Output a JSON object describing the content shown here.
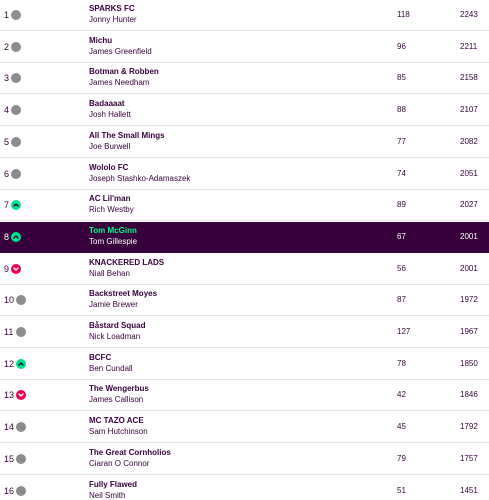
{
  "standings": [
    {
      "rank": "1",
      "movement": "same",
      "team": "SPARKS FC",
      "manager": "Jonny Hunter",
      "gw": "118",
      "total": "2243"
    },
    {
      "rank": "2",
      "movement": "same",
      "team": "Michu",
      "manager": "James Greenfield",
      "gw": "96",
      "total": "2211"
    },
    {
      "rank": "3",
      "movement": "same",
      "team": "Botman & Robben",
      "manager": "James Needham",
      "gw": "85",
      "total": "2158"
    },
    {
      "rank": "4",
      "movement": "same",
      "team": "Badaaaat",
      "manager": "Josh Hallett",
      "gw": "88",
      "total": "2107"
    },
    {
      "rank": "5",
      "movement": "same",
      "team": "All The Small Mings",
      "manager": "Joe Burwell",
      "gw": "77",
      "total": "2082"
    },
    {
      "rank": "6",
      "movement": "same",
      "team": "Wololo FC",
      "manager": "Joseph Stashko-Adamaszek",
      "gw": "74",
      "total": "2051"
    },
    {
      "rank": "7",
      "movement": "up",
      "team": "AC Lil'man",
      "manager": "Rich Westby",
      "gw": "89",
      "total": "2027"
    },
    {
      "rank": "8",
      "movement": "up",
      "team": "Tom McGinn",
      "manager": "Tom Gillespie",
      "gw": "67",
      "total": "2001",
      "highlight": true
    },
    {
      "rank": "9",
      "movement": "down",
      "team": "KNACKERED LADS",
      "manager": "Niall Behan",
      "gw": "56",
      "total": "2001"
    },
    {
      "rank": "10",
      "movement": "same",
      "team": "Backstreet Moyes",
      "manager": "Jamie Brewer",
      "gw": "87",
      "total": "1972"
    },
    {
      "rank": "11",
      "movement": "same",
      "team": "Båstard Squad",
      "manager": "Nick Loadman",
      "gw": "127",
      "total": "1967"
    },
    {
      "rank": "12",
      "movement": "up",
      "team": "BCFC",
      "manager": "Ben Cundall",
      "gw": "78",
      "total": "1850"
    },
    {
      "rank": "13",
      "movement": "down",
      "team": "The Wengerbus",
      "manager": "James Callison",
      "gw": "42",
      "total": "1846"
    },
    {
      "rank": "14",
      "movement": "same",
      "team": "MC TAZO ACE",
      "manager": "Sam Hutchinson",
      "gw": "45",
      "total": "1792"
    },
    {
      "rank": "15",
      "movement": "same",
      "team": "The Great Cornholios",
      "manager": "Ciaran O Connor",
      "gw": "79",
      "total": "1757"
    },
    {
      "rank": "16",
      "movement": "same",
      "team": "Fully Flawed",
      "manager": "Neil Smith",
      "gw": "51",
      "total": "1451"
    }
  ],
  "colors": {
    "primary": "#37003c",
    "highlight_bg": "#37003c",
    "highlight_team": "#00ff87",
    "up": "#00e28b",
    "down": "#e90052",
    "same": "#8c8c8c"
  },
  "icons": {
    "same": "dot-icon",
    "up": "chevron-up-icon",
    "down": "chevron-down-icon"
  }
}
